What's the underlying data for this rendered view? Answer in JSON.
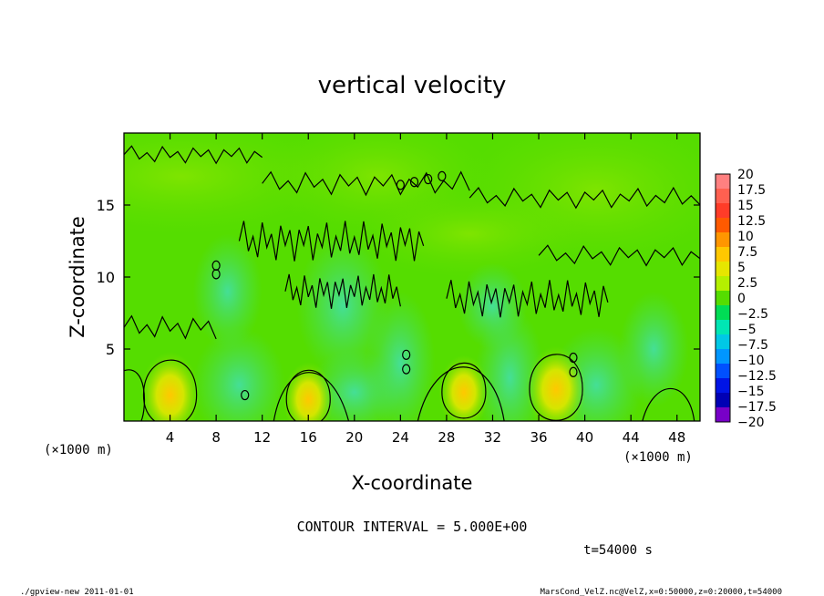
{
  "chart_data": {
    "type": "heatmap",
    "title": "vertical velocity",
    "xlabel": "X-coordinate",
    "ylabel": "Z-coordinate",
    "x_unit_label_left": "(×1000 m)",
    "x_unit_label_right": "(×1000 m)",
    "xlim": [
      0,
      50
    ],
    "ylim": [
      0,
      20
    ],
    "x_ticks": [
      4,
      8,
      12,
      16,
      20,
      24,
      28,
      32,
      36,
      40,
      44,
      48
    ],
    "y_ticks": [
      5,
      10,
      15
    ],
    "colorbar": {
      "levels": [
        "20",
        "17.5",
        "15",
        "12.5",
        "10",
        "7.5",
        "5",
        "2.5",
        "0",
        "−2.5",
        "−5",
        "−7.5",
        "−10",
        "−12.5",
        "−15",
        "−17.5",
        "−20"
      ],
      "colors": [
        "#ff8080",
        "#ff6050",
        "#ff3c28",
        "#ff5a00",
        "#ff9600",
        "#ffc800",
        "#e6e600",
        "#b4f000",
        "#55dd00",
        "#00dd55",
        "#00e6b4",
        "#00c8e6",
        "#0096ff",
        "#0050ff",
        "#0014e6",
        "#0000b4",
        "#7800c8"
      ]
    },
    "contour_interval_text": "CONTOUR INTERVAL = 5.000E+00",
    "time_text": "t=54000 s",
    "field_description": "Mostly near-zero vertical velocity (green, 0 to 2.5) with positive updraft cores (yellow, ~7.5) near the surface at x≈4, 16, 29, 37 and weak downdraft regions (cyan) near x≈10 and x≈40.",
    "updraft_cores": [
      {
        "x": 4.0,
        "z": 1.8,
        "peak": 7.5
      },
      {
        "x": 16.0,
        "z": 1.5,
        "peak": 5
      },
      {
        "x": 29.5,
        "z": 2.0,
        "peak": 5
      },
      {
        "x": 37.5,
        "z": 2.2,
        "peak": 7.5
      }
    ]
  },
  "footer": {
    "left": "./gpview-new  2011-01-01",
    "right": "MarsCond_VelZ.nc@VelZ,x=0:50000,z=0:20000,t=54000"
  }
}
